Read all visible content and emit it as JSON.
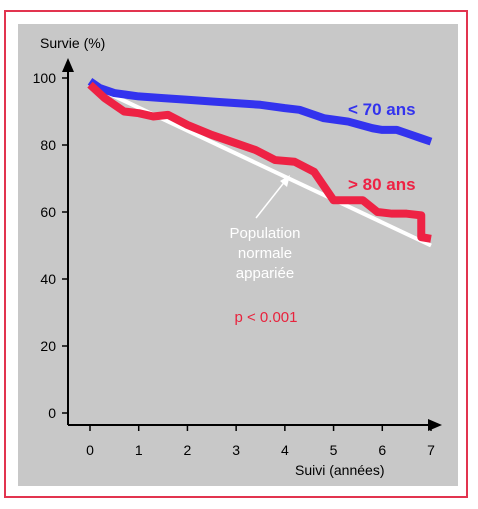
{
  "chart_data": {
    "type": "line",
    "ylabel": "Survie (%)",
    "xlabel": "Suivi (années)",
    "xlim": [
      0,
      7
    ],
    "ylim": [
      0,
      100
    ],
    "x_ticks": [
      0,
      1,
      2,
      3,
      4,
      5,
      6,
      7
    ],
    "y_ticks": [
      0,
      20,
      40,
      60,
      80,
      100
    ],
    "grid": false,
    "series": [
      {
        "name": "< 70 ans",
        "color": "#3333ee",
        "x": [
          0,
          0.2,
          0.5,
          1,
          1.5,
          2,
          2.5,
          3,
          3.5,
          4,
          4.3,
          4.8,
          5.3,
          5.8,
          6,
          6.3,
          6.5,
          6.8,
          7
        ],
        "y": [
          99,
          97,
          95.5,
          94.5,
          94,
          93.5,
          93,
          92.5,
          92,
          91,
          90.5,
          88,
          87,
          85,
          84.5,
          84.5,
          83.5,
          82,
          81
        ]
      },
      {
        "name": "> 80 ans",
        "color": "#ee2244",
        "x": [
          0,
          0.3,
          0.7,
          1,
          1.3,
          1.6,
          2,
          2.5,
          3,
          3.4,
          3.8,
          4.2,
          4.6,
          5,
          5.3,
          5.6,
          5.9,
          6.2,
          6.5,
          6.8,
          6.8,
          7
        ],
        "y": [
          98,
          94,
          90,
          89.5,
          88.5,
          89,
          86,
          83,
          80.5,
          78.5,
          75.5,
          75,
          72,
          63.5,
          63.5,
          63.5,
          60,
          59.5,
          59.5,
          59,
          52.5,
          52
        ]
      },
      {
        "color": "#ffffff",
        "x": [
          0,
          7
        ],
        "y": [
          98,
          50
        ]
      }
    ],
    "annotations": {
      "population": [
        "Population",
        "normale",
        "appariée"
      ],
      "pvalue": "p < 0.001"
    }
  }
}
